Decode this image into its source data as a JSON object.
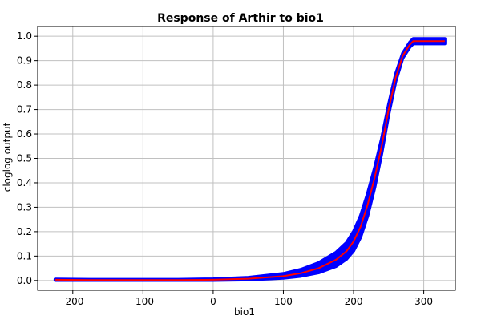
{
  "chart_data": {
    "type": "line",
    "title": "Response of Arthir to bio1",
    "xlabel": "bio1",
    "ylabel": "cloglog output",
    "xlim": [
      -250,
      345
    ],
    "ylim": [
      -0.04,
      1.04
    ],
    "x_ticks": [
      -200,
      -100,
      0,
      100,
      200,
      300
    ],
    "y_ticks": [
      0.0,
      0.1,
      0.2,
      0.3,
      0.4,
      0.5,
      0.6,
      0.7,
      0.8,
      0.9,
      1.0
    ],
    "x_tick_labels": [
      "-200",
      "-100",
      "0",
      "100",
      "200",
      "300"
    ],
    "y_tick_labels": [
      "0.0",
      "0.1",
      "0.2",
      "0.3",
      "0.4",
      "0.5",
      "0.6",
      "0.7",
      "0.8",
      "0.9",
      "1.0"
    ],
    "grid": true,
    "legend": "none",
    "series": [
      {
        "role": "mean",
        "color": "#ff0000",
        "x": [
          -225,
          -175,
          -100,
          -50,
          0,
          50,
          100,
          125,
          150,
          175,
          190,
          200,
          210,
          220,
          230,
          240,
          250,
          260,
          270,
          280,
          285,
          330
        ],
        "y": [
          0.003,
          0.002,
          0.002,
          0.002,
          0.003,
          0.007,
          0.018,
          0.03,
          0.05,
          0.085,
          0.12,
          0.16,
          0.22,
          0.31,
          0.42,
          0.55,
          0.7,
          0.83,
          0.92,
          0.965,
          0.98,
          0.98
        ]
      },
      {
        "role": "upper-band",
        "color": "#0000ff",
        "x": [
          -225,
          -175,
          -100,
          -50,
          0,
          50,
          100,
          125,
          150,
          175,
          190,
          200,
          210,
          220,
          230,
          240,
          250,
          260,
          270,
          280,
          285,
          330
        ],
        "y": [
          0.005,
          0.004,
          0.004,
          0.004,
          0.006,
          0.012,
          0.028,
          0.045,
          0.072,
          0.115,
          0.155,
          0.2,
          0.265,
          0.355,
          0.46,
          0.58,
          0.72,
          0.845,
          0.93,
          0.975,
          0.99,
          0.99
        ]
      },
      {
        "role": "lower-band",
        "color": "#0000ff",
        "x": [
          -225,
          -175,
          -100,
          -50,
          0,
          50,
          100,
          125,
          150,
          175,
          190,
          200,
          210,
          220,
          230,
          240,
          250,
          260,
          270,
          280,
          285,
          330
        ],
        "y": [
          0.001,
          0.001,
          0.001,
          0.001,
          0.001,
          0.003,
          0.01,
          0.018,
          0.032,
          0.058,
          0.088,
          0.122,
          0.178,
          0.265,
          0.38,
          0.52,
          0.68,
          0.815,
          0.91,
          0.955,
          0.97,
          0.97
        ]
      }
    ]
  }
}
